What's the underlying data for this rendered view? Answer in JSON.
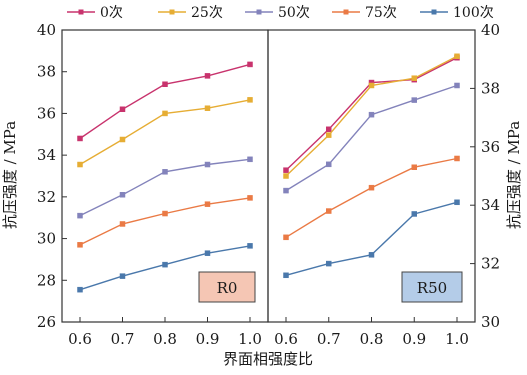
{
  "chart_data": [
    {
      "type": "line",
      "panel_tag": "R0",
      "panel_tag_color": "#f5c6b4",
      "x": [
        0.6,
        0.7,
        0.8,
        0.9,
        1.0
      ],
      "x_tick_labels": [
        "0.6",
        "0.7",
        "0.8",
        "0.9",
        "1.0"
      ],
      "xlabel": "界面相强度比",
      "ylabel": "抗压强度 / MPa",
      "ylim": [
        26,
        40
      ],
      "y_ticks": [
        26,
        28,
        30,
        32,
        34,
        36,
        38,
        40
      ],
      "y_tick_labels": [
        "26",
        "28",
        "30",
        "32",
        "34",
        "36",
        "38",
        "40"
      ],
      "grid": false,
      "series": [
        {
          "name": "0次",
          "color": "#c8336d",
          "values": [
            34.8,
            36.2,
            37.4,
            37.8,
            38.35
          ]
        },
        {
          "name": "25次",
          "color": "#e6ad34",
          "values": [
            33.55,
            34.75,
            36.0,
            36.25,
            36.65
          ]
        },
        {
          "name": "50次",
          "color": "#8383bb",
          "values": [
            31.1,
            32.1,
            33.2,
            33.55,
            33.8
          ]
        },
        {
          "name": "75次",
          "color": "#ea7a45",
          "values": [
            29.7,
            30.7,
            31.2,
            31.65,
            31.95
          ]
        },
        {
          "name": "100次",
          "color": "#4a78ab",
          "values": [
            27.55,
            28.2,
            28.75,
            29.3,
            29.65
          ]
        }
      ]
    },
    {
      "type": "line",
      "panel_tag": "R50",
      "panel_tag_color": "#b4cce8",
      "x": [
        0.6,
        0.7,
        0.8,
        0.9,
        1.0
      ],
      "x_tick_labels": [
        "0.6",
        "0.7",
        "0.8",
        "0.9",
        "1.0"
      ],
      "xlabel": "界面相强度比",
      "ylabel": "抗压强度 / MPa",
      "ylim": [
        30,
        40
      ],
      "y_ticks": [
        30,
        32,
        34,
        36,
        38,
        40
      ],
      "y_tick_labels": [
        "30",
        "32",
        "34",
        "36",
        "38",
        "40"
      ],
      "grid": false,
      "series": [
        {
          "name": "0次",
          "color": "#c8336d",
          "values": [
            35.2,
            36.6,
            38.2,
            38.3,
            39.05
          ]
        },
        {
          "name": "25次",
          "color": "#e6ad34",
          "values": [
            35.0,
            36.4,
            38.1,
            38.35,
            39.1
          ]
        },
        {
          "name": "50次",
          "color": "#8383bb",
          "values": [
            34.5,
            35.4,
            37.1,
            37.6,
            38.1
          ]
        },
        {
          "name": "75次",
          "color": "#ea7a45",
          "values": [
            32.9,
            33.8,
            34.6,
            35.3,
            35.6
          ]
        },
        {
          "name": "100次",
          "color": "#4a78ab",
          "values": [
            31.6,
            32.0,
            32.3,
            33.7,
            34.1
          ]
        }
      ]
    }
  ]
}
